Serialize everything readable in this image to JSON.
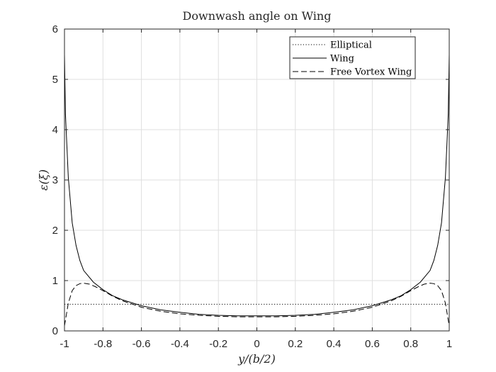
{
  "chart_data": {
    "type": "line",
    "title": "Downwash angle on Wing",
    "xlabel": "y/(b/2)",
    "ylabel": "ε(ξ)",
    "xlim": [
      -1,
      1
    ],
    "ylim": [
      0,
      6
    ],
    "xticks": [
      -1,
      -0.8,
      -0.6,
      -0.4,
      -0.2,
      0,
      0.2,
      0.4,
      0.6,
      0.8,
      1
    ],
    "xtick_labels": [
      "-1",
      "-0.8",
      "-0.6",
      "-0.4",
      "-0.2",
      "0",
      "0.2",
      "0.4",
      "0.6",
      "0.8",
      "1"
    ],
    "yticks": [
      0,
      1,
      2,
      3,
      4,
      5,
      6
    ],
    "ytick_labels": [
      "0",
      "1",
      "2",
      "3",
      "4",
      "5",
      "6"
    ],
    "grid": true,
    "legend_position": "top-right",
    "series": [
      {
        "name": "Elliptical",
        "style": "dotted",
        "color": "#000000",
        "x": [
          -1,
          1
        ],
        "y": [
          0.53,
          0.53
        ]
      },
      {
        "name": "Wing",
        "style": "solid",
        "color": "#000000",
        "x": [
          -1,
          -0.995,
          -0.98,
          -0.96,
          -0.94,
          -0.92,
          -0.9,
          -0.85,
          -0.8,
          -0.75,
          -0.7,
          -0.6,
          -0.5,
          -0.4,
          -0.3,
          -0.2,
          -0.1,
          0,
          0.1,
          0.2,
          0.3,
          0.4,
          0.5,
          0.6,
          0.7,
          0.75,
          0.8,
          0.85,
          0.9,
          0.92,
          0.94,
          0.96,
          0.98,
          0.995,
          1
        ],
        "y": [
          5.5,
          4.3,
          3.05,
          2.15,
          1.7,
          1.4,
          1.2,
          0.97,
          0.82,
          0.7,
          0.62,
          0.5,
          0.42,
          0.37,
          0.33,
          0.31,
          0.3,
          0.3,
          0.3,
          0.31,
          0.33,
          0.37,
          0.42,
          0.5,
          0.62,
          0.7,
          0.82,
          0.97,
          1.2,
          1.4,
          1.7,
          2.15,
          3.05,
          4.3,
          5.5
        ]
      },
      {
        "name": "Free Vortex Wing",
        "style": "dashed",
        "color": "#000000",
        "x": [
          -1,
          -0.98,
          -0.96,
          -0.94,
          -0.92,
          -0.9,
          -0.87,
          -0.84,
          -0.8,
          -0.75,
          -0.7,
          -0.6,
          -0.5,
          -0.4,
          -0.3,
          -0.2,
          -0.1,
          0,
          0.1,
          0.2,
          0.3,
          0.4,
          0.5,
          0.6,
          0.7,
          0.75,
          0.8,
          0.84,
          0.87,
          0.9,
          0.92,
          0.94,
          0.96,
          0.98,
          1
        ],
        "y": [
          0.1,
          0.55,
          0.8,
          0.9,
          0.94,
          0.95,
          0.93,
          0.88,
          0.8,
          0.69,
          0.6,
          0.47,
          0.39,
          0.34,
          0.31,
          0.29,
          0.28,
          0.28,
          0.28,
          0.29,
          0.31,
          0.34,
          0.39,
          0.47,
          0.6,
          0.69,
          0.8,
          0.88,
          0.93,
          0.95,
          0.94,
          0.9,
          0.8,
          0.55,
          0.1
        ]
      }
    ]
  }
}
